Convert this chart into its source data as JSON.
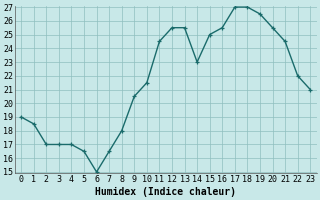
{
  "x": [
    0,
    1,
    2,
    3,
    4,
    5,
    6,
    7,
    8,
    9,
    10,
    11,
    12,
    13,
    14,
    15,
    16,
    17,
    18,
    19,
    20,
    21,
    22,
    23
  ],
  "y": [
    19,
    18.5,
    17,
    17,
    17,
    16.5,
    15,
    16.5,
    18,
    20.5,
    21.5,
    24.5,
    25.5,
    25.5,
    23,
    25,
    25.5,
    27,
    27,
    26.5,
    25.5,
    24.5,
    22,
    21
  ],
  "line_color": "#1a6b6b",
  "marker": "+",
  "bg_color": "#c8e8e8",
  "grid_color": "#8fbfbf",
  "xlabel": "Humidex (Indice chaleur)",
  "ylim": [
    15,
    27
  ],
  "xlim": [
    -0.5,
    23.5
  ],
  "yticks": [
    15,
    16,
    17,
    18,
    19,
    20,
    21,
    22,
    23,
    24,
    25,
    26,
    27
  ],
  "xticks": [
    0,
    1,
    2,
    3,
    4,
    5,
    6,
    7,
    8,
    9,
    10,
    11,
    12,
    13,
    14,
    15,
    16,
    17,
    18,
    19,
    20,
    21,
    22,
    23
  ],
  "xlabel_fontsize": 7,
  "tick_fontsize": 6,
  "line_width": 1.0,
  "markersize": 3.5
}
